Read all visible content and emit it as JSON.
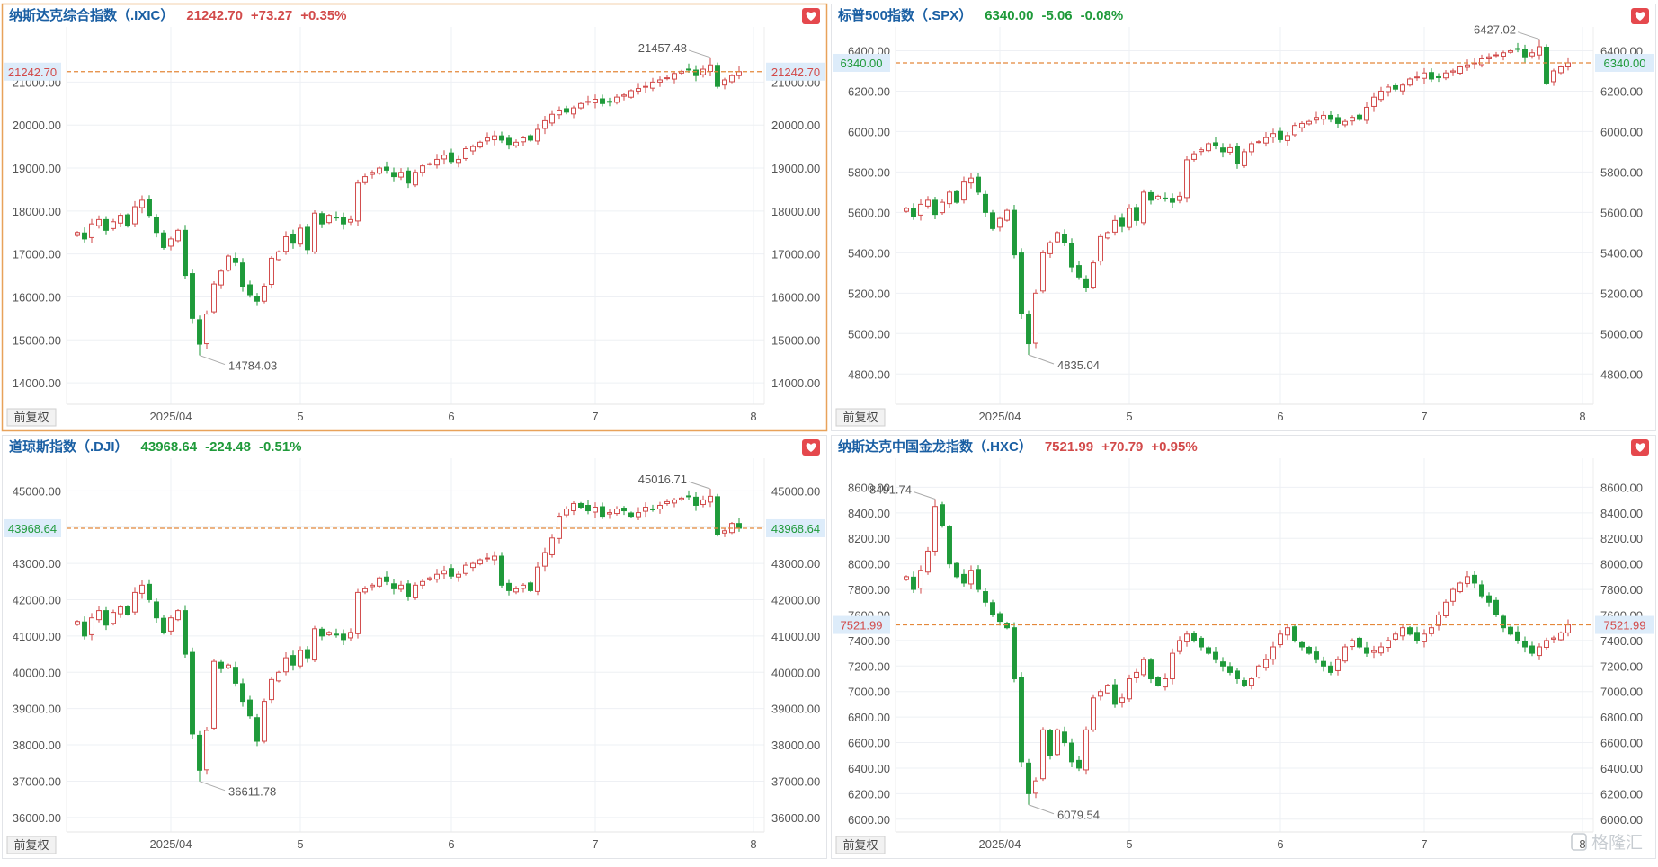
{
  "watermark": "格隆汇",
  "colors": {
    "up": "#d24a4a",
    "down": "#1f9a3a",
    "grid": "#eef0f4",
    "frame": "#e2e4e8",
    "highlight": "#e8a25a",
    "refline": "#e4883a",
    "tag_bg": "#ddecfa",
    "title": "#1a5fa3",
    "axis_text": "#555555"
  },
  "months": [
    "2025/04",
    "5",
    "6",
    "7",
    "8"
  ],
  "adjust_label": "前复权",
  "favorite_icon": "heart-icon",
  "chart_data": [
    {
      "type": "candlestick",
      "name": "纳斯达克综合指数（.IXIC）",
      "price": "21242.70",
      "change": "+73.27",
      "pct": "+0.35%",
      "direction": "up",
      "last": 21242.7,
      "last_label": "21242.70",
      "ylim": [
        13500,
        22200
      ],
      "yticks": [
        14000,
        15000,
        16000,
        17000,
        18000,
        19000,
        20000,
        21000
      ],
      "high_label": "21457.48",
      "low_label": "14784.03",
      "closes": [
        17500,
        17350,
        17700,
        17800,
        17550,
        17750,
        17900,
        17650,
        18100,
        18250,
        17900,
        17500,
        17150,
        17350,
        17550,
        16500,
        15500,
        14900,
        15600,
        16300,
        16600,
        16950,
        16800,
        16250,
        16050,
        15900,
        16250,
        16900,
        17050,
        17400,
        17250,
        17600,
        17100,
        17950,
        17700,
        17900,
        17850,
        17700,
        17800,
        18650,
        18800,
        18900,
        19000,
        18950,
        18800,
        18900,
        18650,
        18900,
        19050,
        19100,
        19200,
        19300,
        19150,
        19200,
        19450,
        19500,
        19600,
        19700,
        19750,
        19650,
        19550,
        19600,
        19700,
        19650,
        19900,
        20100,
        20250,
        20350,
        20300,
        20400,
        20500,
        20550,
        20600,
        20500,
        20550,
        20650,
        20700,
        20800,
        20850,
        20900,
        21000,
        21050,
        21100,
        21200,
        21250,
        21300,
        21150,
        21300,
        21400,
        20900,
        21050,
        21150,
        21242.7
      ],
      "high_index": 88,
      "low_index": 17,
      "month_index": [
        13,
        31,
        52,
        72,
        94
      ]
    },
    {
      "type": "candlestick",
      "name": "标普500指数（.SPX）",
      "price": "6340.00",
      "change": "-5.06",
      "pct": "-0.08%",
      "direction": "down",
      "last": 6340.0,
      "last_label": "6340.00",
      "ylim": [
        4650,
        6500
      ],
      "yticks": [
        4800,
        5000,
        5200,
        5400,
        5600,
        5800,
        6000,
        6200,
        6400
      ],
      "high_label": "6427.02",
      "low_label": "4835.04",
      "closes": [
        5620,
        5580,
        5640,
        5660,
        5590,
        5650,
        5700,
        5650,
        5750,
        5770,
        5700,
        5600,
        5520,
        5570,
        5610,
        5390,
        5100,
        4950,
        5200,
        5400,
        5450,
        5500,
        5450,
        5330,
        5280,
        5230,
        5350,
        5480,
        5500,
        5560,
        5530,
        5620,
        5560,
        5700,
        5660,
        5680,
        5670,
        5650,
        5680,
        5860,
        5890,
        5910,
        5940,
        5930,
        5900,
        5920,
        5840,
        5900,
        5940,
        5950,
        5970,
        5990,
        5960,
        5980,
        6030,
        6040,
        6050,
        6070,
        6080,
        6060,
        6040,
        6050,
        6070,
        6060,
        6120,
        6170,
        6200,
        6220,
        6210,
        6230,
        6260,
        6270,
        6290,
        6260,
        6270,
        6290,
        6300,
        6320,
        6330,
        6340,
        6360,
        6370,
        6380,
        6390,
        6400,
        6410,
        6370,
        6390,
        6420,
        6240,
        6300,
        6320,
        6340
      ],
      "high_index": 88,
      "low_index": 17,
      "month_index": [
        13,
        31,
        52,
        72,
        94
      ]
    },
    {
      "type": "candlestick",
      "name": "道琼斯指数（.DJI）",
      "price": "43968.64",
      "change": "-224.48",
      "pct": "-0.51%",
      "direction": "down",
      "last": 43968.64,
      "last_label": "43968.64",
      "ylim": [
        35600,
        45800
      ],
      "yticks": [
        36000,
        37000,
        38000,
        39000,
        40000,
        41000,
        42000,
        43000,
        44000,
        45000
      ],
      "high_label": "45016.71",
      "low_label": "36611.78",
      "closes": [
        41400,
        41000,
        41500,
        41700,
        41300,
        41650,
        41800,
        41600,
        42200,
        42400,
        42000,
        41500,
        41100,
        41500,
        41700,
        40500,
        38300,
        37300,
        38400,
        40300,
        40100,
        40200,
        39700,
        39200,
        38800,
        38100,
        39200,
        39800,
        40000,
        40400,
        40200,
        40600,
        40400,
        41200,
        41000,
        41100,
        41050,
        40900,
        41100,
        42200,
        42300,
        42400,
        42600,
        42500,
        42300,
        42400,
        42100,
        42400,
        42500,
        42600,
        42700,
        42800,
        42650,
        42700,
        42950,
        43000,
        43100,
        43150,
        43200,
        42400,
        42250,
        42300,
        42400,
        42250,
        42900,
        43300,
        43700,
        44300,
        44500,
        44650,
        44550,
        44450,
        44550,
        44300,
        44400,
        44500,
        44450,
        44300,
        44400,
        44550,
        44500,
        44600,
        44700,
        44750,
        44800,
        44850,
        44600,
        44750,
        44850,
        43800,
        43900,
        44100,
        43968.64
      ],
      "high_index": 88,
      "low_index": 17,
      "month_index": [
        13,
        31,
        52,
        72,
        94
      ]
    },
    {
      "type": "candlestick",
      "name": "纳斯达克中国金龙指数（.HXC）",
      "price": "7521.99",
      "change": "+70.79",
      "pct": "+0.95%",
      "direction": "up",
      "last": 7521.99,
      "last_label": "7521.99",
      "ylim": [
        5900,
        8800
      ],
      "yticks": [
        6000,
        6200,
        6400,
        6600,
        6800,
        7000,
        7200,
        7400,
        7600,
        7800,
        8000,
        8200,
        8400,
        8600
      ],
      "high_label": "8491.74",
      "low_label": "6079.54",
      "closes": [
        7900,
        7800,
        7950,
        8100,
        8450,
        8300,
        8000,
        7900,
        7850,
        7950,
        7800,
        7700,
        7600,
        7550,
        7500,
        7100,
        6450,
        6200,
        6300,
        6700,
        6500,
        6700,
        6600,
        6450,
        6400,
        6700,
        6950,
        7000,
        7050,
        6900,
        6950,
        7100,
        7150,
        7250,
        7100,
        7050,
        7100,
        7300,
        7400,
        7450,
        7400,
        7350,
        7300,
        7250,
        7200,
        7150,
        7100,
        7050,
        7100,
        7200,
        7250,
        7350,
        7450,
        7500,
        7400,
        7350,
        7300,
        7250,
        7200,
        7150,
        7250,
        7350,
        7400,
        7350,
        7300,
        7320,
        7350,
        7400,
        7450,
        7500,
        7450,
        7400,
        7450,
        7500,
        7600,
        7700,
        7800,
        7850,
        7900,
        7850,
        7750,
        7700,
        7600,
        7500,
        7450,
        7400,
        7350,
        7300,
        7350,
        7400,
        7420,
        7460,
        7521.99
      ],
      "high_index": 4,
      "low_index": 17,
      "month_index": [
        13,
        31,
        52,
        72,
        94
      ]
    }
  ]
}
